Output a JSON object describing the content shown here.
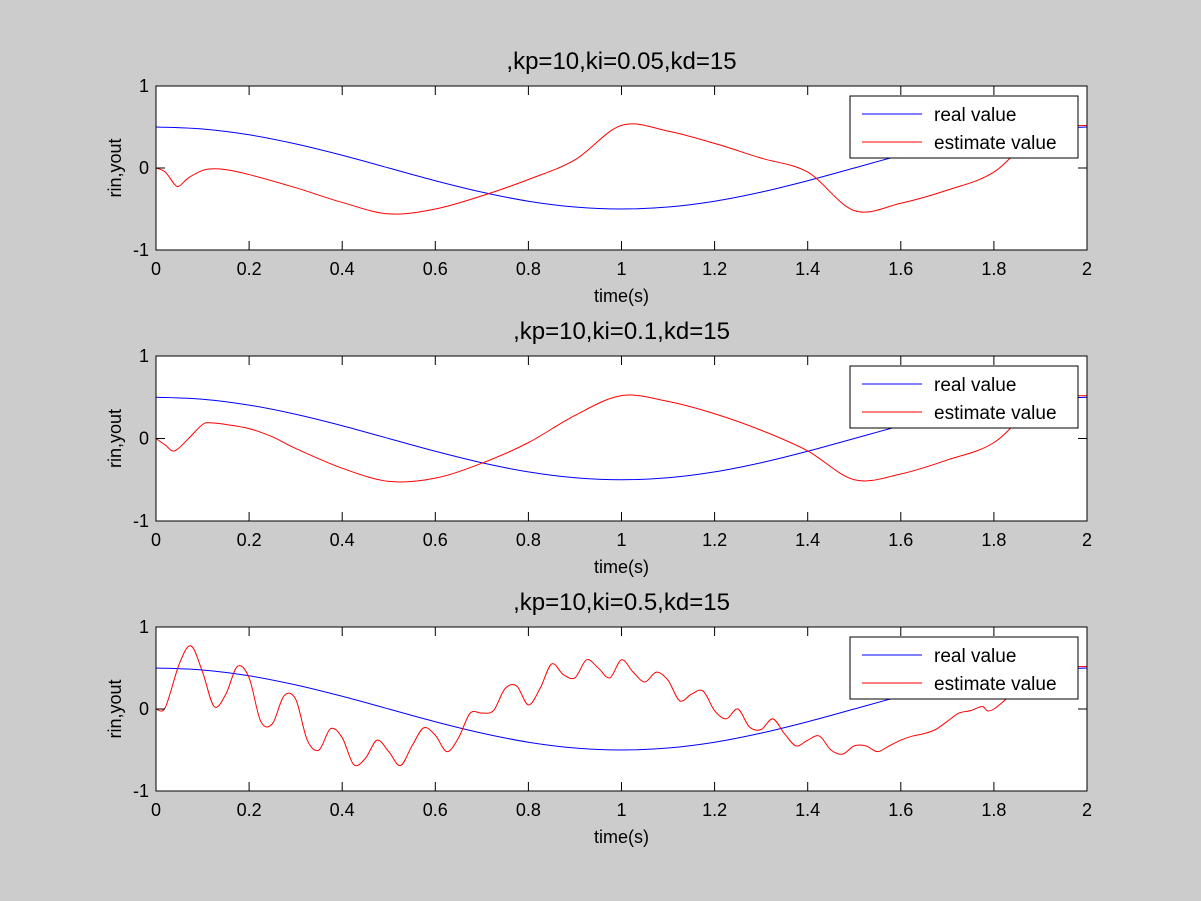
{
  "colors": {
    "figure_background": "#cccccc",
    "axes_background": "#ffffff",
    "real_value": "#0000ff",
    "estimate_value": "#ff0000"
  },
  "chart_data": [
    {
      "type": "line",
      "title": ",kp=10,ki=0.05,kd=15",
      "xlabel": "time(s)",
      "ylabel": "rin,yout",
      "xlim": [
        0,
        2
      ],
      "ylim": [
        -1,
        1
      ],
      "xticks": [
        "0",
        "0.2",
        "0.4",
        "0.6",
        "0.8",
        "1",
        "1.2",
        "1.4",
        "1.6",
        "1.8",
        "2"
      ],
      "yticks": [
        "-1",
        "0",
        "1"
      ],
      "grid": false,
      "legend": {
        "position": "top-right",
        "entries": [
          "real value",
          "estimate value"
        ]
      },
      "series": [
        {
          "name": "real value",
          "color": "#0000ff",
          "x": [
            0,
            0.1,
            0.2,
            0.3,
            0.4,
            0.5,
            0.6,
            0.7,
            0.8,
            0.9,
            1.0,
            1.1,
            1.2,
            1.3,
            1.4,
            1.5,
            1.6,
            1.7,
            1.8,
            1.9,
            2.0
          ],
          "y": [
            0.5,
            0.476,
            0.405,
            0.294,
            0.155,
            0.0,
            -0.155,
            -0.294,
            -0.405,
            -0.476,
            -0.5,
            -0.476,
            -0.405,
            -0.294,
            -0.155,
            0.0,
            0.155,
            0.294,
            0.405,
            0.476,
            0.5
          ]
        },
        {
          "name": "estimate value",
          "color": "#ff0000",
          "x": [
            0,
            0.02,
            0.04,
            0.05,
            0.07,
            0.1,
            0.12,
            0.15,
            0.2,
            0.3,
            0.4,
            0.5,
            0.6,
            0.7,
            0.8,
            0.9,
            1.0,
            1.1,
            1.2,
            1.3,
            1.4,
            1.5,
            1.6,
            1.7,
            1.8,
            1.9,
            2.0
          ],
          "y": [
            0.0,
            -0.05,
            -0.2,
            -0.22,
            -0.12,
            -0.03,
            -0.01,
            -0.02,
            -0.08,
            -0.24,
            -0.42,
            -0.56,
            -0.5,
            -0.34,
            -0.14,
            0.1,
            0.52,
            0.45,
            0.3,
            0.12,
            -0.05,
            -0.52,
            -0.43,
            -0.27,
            -0.05,
            0.45,
            0.52
          ]
        }
      ]
    },
    {
      "type": "line",
      "title": ",kp=10,ki=0.1,kd=15",
      "xlabel": "time(s)",
      "ylabel": "rin,yout",
      "xlim": [
        0,
        2
      ],
      "ylim": [
        -1,
        1
      ],
      "xticks": [
        "0",
        "0.2",
        "0.4",
        "0.6",
        "0.8",
        "1",
        "1.2",
        "1.4",
        "1.6",
        "1.8",
        "2"
      ],
      "yticks": [
        "-1",
        "0",
        "1"
      ],
      "grid": false,
      "legend": {
        "position": "top-right",
        "entries": [
          "real value",
          "estimate value"
        ]
      },
      "series": [
        {
          "name": "real value",
          "color": "#0000ff",
          "x": [
            0,
            0.1,
            0.2,
            0.3,
            0.4,
            0.5,
            0.6,
            0.7,
            0.8,
            0.9,
            1.0,
            1.1,
            1.2,
            1.3,
            1.4,
            1.5,
            1.6,
            1.7,
            1.8,
            1.9,
            2.0
          ],
          "y": [
            0.5,
            0.476,
            0.405,
            0.294,
            0.155,
            0.0,
            -0.155,
            -0.294,
            -0.405,
            -0.476,
            -0.5,
            -0.476,
            -0.405,
            -0.294,
            -0.155,
            0.0,
            0.155,
            0.294,
            0.405,
            0.476,
            0.5
          ]
        },
        {
          "name": "estimate value",
          "color": "#ff0000",
          "x": [
            0,
            0.02,
            0.04,
            0.07,
            0.1,
            0.12,
            0.15,
            0.2,
            0.25,
            0.3,
            0.4,
            0.5,
            0.6,
            0.7,
            0.8,
            0.9,
            1.0,
            1.1,
            1.2,
            1.3,
            1.4,
            1.5,
            1.6,
            1.7,
            1.8,
            1.9,
            2.0
          ],
          "y": [
            0.0,
            -0.08,
            -0.15,
            0.0,
            0.17,
            0.19,
            0.17,
            0.12,
            0.02,
            -0.12,
            -0.36,
            -0.52,
            -0.48,
            -0.3,
            -0.05,
            0.28,
            0.52,
            0.45,
            0.3,
            0.1,
            -0.15,
            -0.5,
            -0.43,
            -0.26,
            -0.05,
            0.45,
            0.52
          ]
        }
      ]
    },
    {
      "type": "line",
      "title": ",kp=10,ki=0.5,kd=15",
      "xlabel": "time(s)",
      "ylabel": "rin,yout",
      "xlim": [
        0,
        2
      ],
      "ylim": [
        -1,
        1
      ],
      "xticks": [
        "0",
        "0.2",
        "0.4",
        "0.6",
        "0.8",
        "1",
        "1.2",
        "1.4",
        "1.6",
        "1.8",
        "2"
      ],
      "yticks": [
        "-1",
        "0",
        "1"
      ],
      "grid": false,
      "legend": {
        "position": "top-right",
        "entries": [
          "real value",
          "estimate value"
        ]
      },
      "series": [
        {
          "name": "real value",
          "color": "#0000ff",
          "x": [
            0,
            0.1,
            0.2,
            0.3,
            0.4,
            0.5,
            0.6,
            0.7,
            0.8,
            0.9,
            1.0,
            1.1,
            1.2,
            1.3,
            1.4,
            1.5,
            1.6,
            1.7,
            1.8,
            1.9,
            2.0
          ],
          "y": [
            0.5,
            0.476,
            0.405,
            0.294,
            0.155,
            0.0,
            -0.155,
            -0.294,
            -0.405,
            -0.476,
            -0.5,
            -0.476,
            -0.405,
            -0.294,
            -0.155,
            0.0,
            0.155,
            0.294,
            0.405,
            0.476,
            0.5
          ]
        },
        {
          "name": "estimate value",
          "color": "#ff0000",
          "x": [
            0,
            0.02,
            0.05,
            0.075,
            0.1,
            0.125,
            0.15,
            0.175,
            0.2,
            0.225,
            0.25,
            0.275,
            0.3,
            0.325,
            0.35,
            0.375,
            0.4,
            0.425,
            0.45,
            0.475,
            0.5,
            0.525,
            0.55,
            0.575,
            0.6,
            0.625,
            0.65,
            0.675,
            0.7,
            0.725,
            0.75,
            0.775,
            0.8,
            0.825,
            0.85,
            0.875,
            0.9,
            0.925,
            0.95,
            0.975,
            1.0,
            1.025,
            1.05,
            1.075,
            1.1,
            1.125,
            1.15,
            1.175,
            1.2,
            1.225,
            1.25,
            1.275,
            1.3,
            1.325,
            1.35,
            1.375,
            1.4,
            1.425,
            1.45,
            1.475,
            1.5,
            1.525,
            1.55,
            1.575,
            1.6,
            1.625,
            1.65,
            1.675,
            1.7,
            1.725,
            1.75,
            1.775,
            1.8,
            1.9,
            2.0
          ],
          "y": [
            0.0,
            0.02,
            0.55,
            0.77,
            0.45,
            0.03,
            0.18,
            0.52,
            0.38,
            -0.15,
            -0.18,
            0.16,
            0.12,
            -0.38,
            -0.5,
            -0.24,
            -0.35,
            -0.68,
            -0.6,
            -0.38,
            -0.52,
            -0.69,
            -0.45,
            -0.23,
            -0.32,
            -0.52,
            -0.35,
            -0.05,
            -0.05,
            -0.02,
            0.25,
            0.28,
            0.05,
            0.25,
            0.55,
            0.42,
            0.38,
            0.6,
            0.5,
            0.38,
            0.6,
            0.45,
            0.33,
            0.45,
            0.35,
            0.1,
            0.18,
            0.22,
            -0.02,
            -0.12,
            0.0,
            -0.22,
            -0.25,
            -0.12,
            -0.3,
            -0.45,
            -0.38,
            -0.33,
            -0.5,
            -0.55,
            -0.45,
            -0.45,
            -0.52,
            -0.45,
            -0.38,
            -0.33,
            -0.3,
            -0.25,
            -0.15,
            -0.05,
            -0.02,
            0.03,
            0.0,
            0.45,
            0.52
          ]
        }
      ]
    }
  ]
}
